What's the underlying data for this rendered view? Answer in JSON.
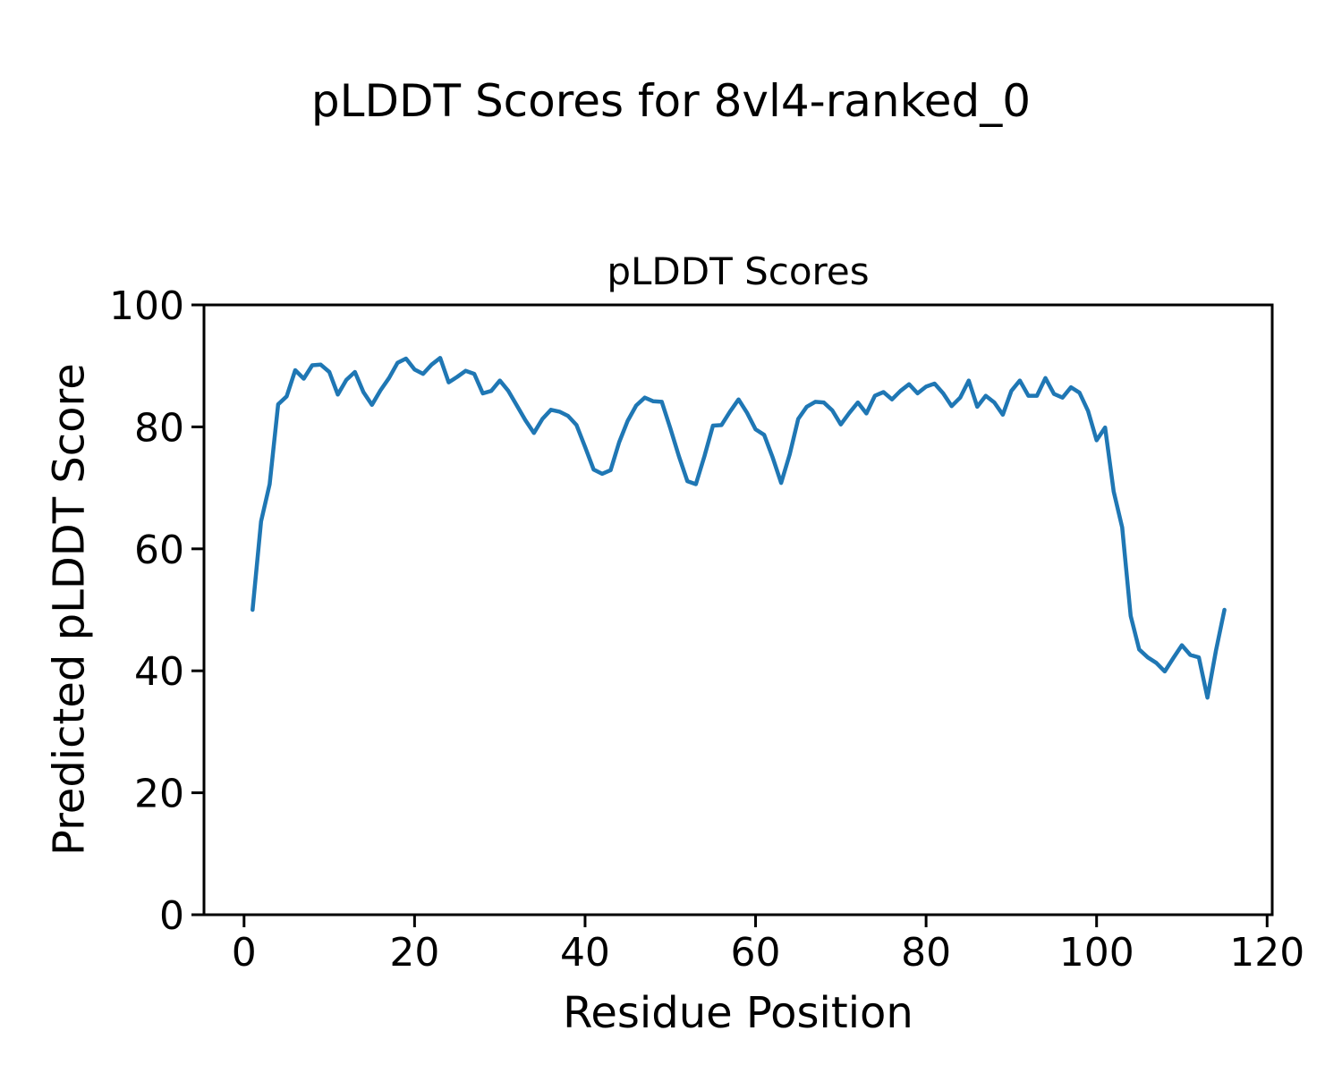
{
  "figure": {
    "suptitle": "pLDDT Scores for 8vl4-ranked_0"
  },
  "chart_data": {
    "type": "line",
    "title": "pLDDT Scores",
    "xlabel": "Residue Position",
    "ylabel": "Predicted pLDDT Score",
    "xlim": [
      -4.7,
      120.6
    ],
    "ylim": [
      0,
      100
    ],
    "xticks": [
      0,
      20,
      40,
      60,
      80,
      100,
      120
    ],
    "yticks": [
      0,
      20,
      40,
      60,
      80,
      100
    ],
    "grid": false,
    "series": [
      {
        "name": "pLDDT",
        "color": "#1f77b4",
        "x": [
          1,
          2,
          3,
          4,
          5,
          6,
          7,
          8,
          9,
          10,
          11,
          12,
          13,
          14,
          15,
          16,
          17,
          18,
          19,
          20,
          21,
          22,
          23,
          24,
          25,
          26,
          27,
          28,
          29,
          30,
          31,
          32,
          33,
          34,
          35,
          36,
          37,
          38,
          39,
          40,
          41,
          42,
          43,
          44,
          45,
          46,
          47,
          48,
          49,
          50,
          51,
          52,
          53,
          54,
          55,
          56,
          57,
          58,
          59,
          60,
          61,
          62,
          63,
          64,
          65,
          66,
          67,
          68,
          69,
          70,
          71,
          72,
          73,
          74,
          75,
          76,
          77,
          78,
          79,
          80,
          81,
          82,
          83,
          84,
          85,
          86,
          87,
          88,
          89,
          90,
          91,
          92,
          93,
          94,
          95,
          96,
          97,
          98,
          99,
          100,
          101,
          102,
          103,
          104,
          105,
          106,
          107,
          108,
          109,
          110,
          111,
          112,
          113,
          114,
          115
        ],
        "values": [
          50.0,
          64.5,
          70.6,
          83.7,
          85.0,
          89.3,
          87.9,
          90.1,
          90.2,
          89.0,
          85.3,
          87.7,
          89.0,
          85.7,
          83.6,
          86.0,
          88.0,
          90.5,
          91.2,
          89.4,
          88.7,
          90.2,
          91.3,
          87.3,
          88.2,
          89.2,
          88.7,
          85.5,
          85.9,
          87.6,
          85.9,
          83.5,
          81.1,
          79.0,
          81.3,
          82.8,
          82.5,
          81.8,
          80.3,
          76.7,
          73.0,
          72.3,
          72.9,
          77.5,
          81.0,
          83.5,
          84.8,
          84.2,
          84.1,
          79.8,
          75.2,
          71.1,
          70.6,
          75.2,
          80.2,
          80.3,
          82.5,
          84.5,
          82.3,
          79.6,
          78.7,
          75.0,
          70.8,
          75.5,
          81.3,
          83.3,
          84.1,
          84.0,
          82.7,
          80.4,
          82.3,
          84.0,
          82.2,
          85.1,
          85.7,
          84.5,
          85.9,
          87.0,
          85.5,
          86.6,
          87.1,
          85.5,
          83.4,
          84.8,
          87.6,
          83.3,
          85.1,
          84.0,
          82.0,
          85.9,
          87.6,
          85.1,
          85.1,
          88.0,
          85.4,
          84.8,
          86.5,
          85.6,
          82.6,
          77.8,
          79.9,
          69.4,
          63.5,
          49.0,
          43.5,
          42.2,
          41.3,
          39.9,
          42.1,
          44.2,
          42.6,
          42.2,
          35.6,
          43.3,
          50.0
        ]
      }
    ]
  }
}
